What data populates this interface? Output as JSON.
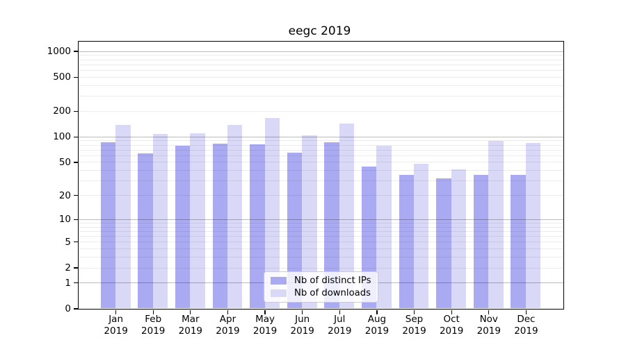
{
  "chart_data": {
    "type": "bar",
    "title": "eegc 2019",
    "yscale": "log1p",
    "ylim": [
      0,
      1300
    ],
    "yticks": [
      1000,
      500,
      200,
      100,
      50,
      20,
      10,
      5,
      2,
      1,
      0
    ],
    "major_grid_values": [
      1,
      10,
      100,
      1000
    ],
    "grid": "major+minor",
    "legend_position": "lower center",
    "categories": [
      "Jan",
      "Feb",
      "Mar",
      "Apr",
      "May",
      "Jun",
      "Jul",
      "Aug",
      "Sep",
      "Oct",
      "Nov",
      "Dec"
    ],
    "x_tick_second_line": "2019",
    "series": [
      {
        "name": "Nb of distinct IPs",
        "color": "#aaaaf2",
        "values": [
          85,
          63,
          78,
          82,
          81,
          64,
          85,
          44,
          35,
          32,
          35,
          35
        ]
      },
      {
        "name": "Nb of downloads",
        "color": "#d9d9f7",
        "values": [
          138,
          108,
          110,
          136,
          166,
          104,
          143,
          78,
          48,
          41,
          89,
          84
        ]
      }
    ]
  }
}
